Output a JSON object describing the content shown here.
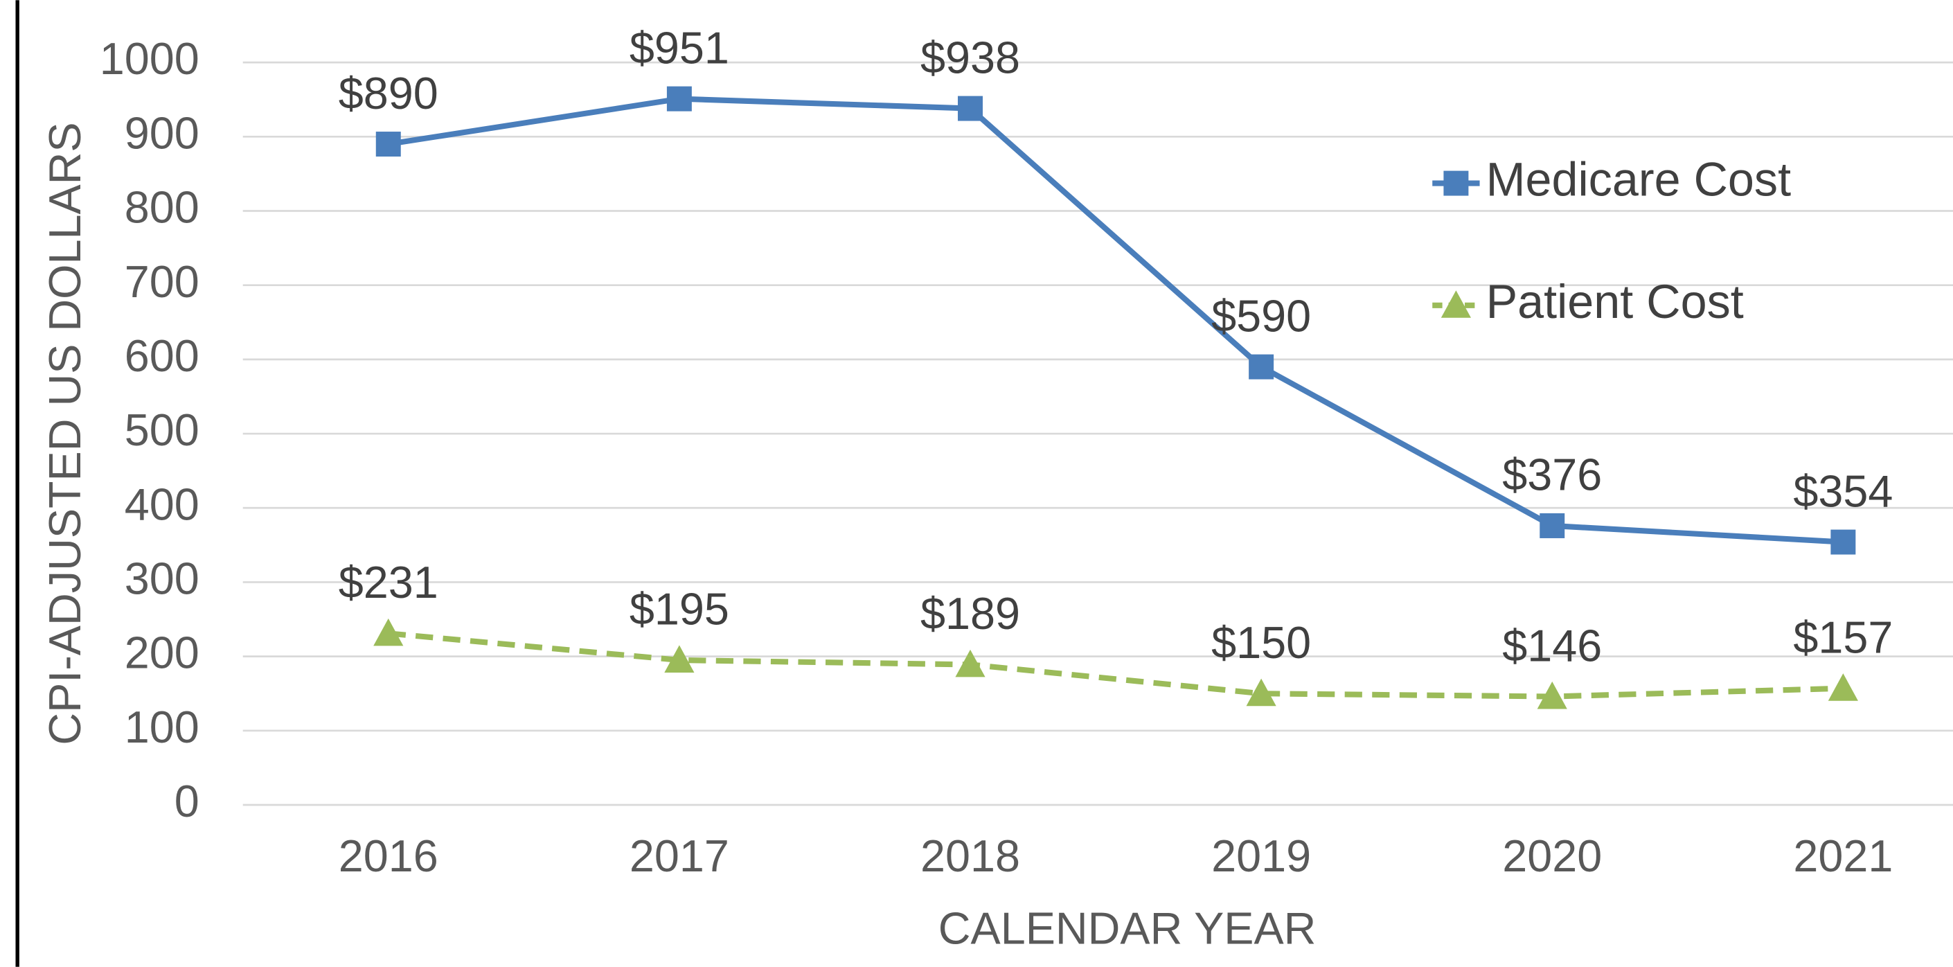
{
  "chart_data": {
    "type": "line",
    "x_label": "CALENDAR YEAR",
    "y_label": "CPI-ADJUSTED US DOLLARS",
    "categories": [
      "2016",
      "2017",
      "2018",
      "2019",
      "2020",
      "2021"
    ],
    "series": [
      {
        "name": "Medicare Cost",
        "color": "#4a7ebb",
        "marker": "square",
        "dashed": false,
        "values": [
          890,
          951,
          938,
          590,
          376,
          354
        ],
        "value_labels": [
          "$890",
          "$951",
          "$938",
          "$590",
          "$376",
          "$354"
        ]
      },
      {
        "name": "Patient Cost",
        "color": "#9bbb59",
        "marker": "triangle",
        "dashed": true,
        "values": [
          231,
          195,
          189,
          150,
          146,
          157
        ],
        "value_labels": [
          "$231",
          "$195",
          "$189",
          "$150",
          "$146",
          "$157"
        ]
      }
    ],
    "ylim": [
      0,
      1000
    ],
    "yticks": [
      0,
      100,
      200,
      300,
      400,
      500,
      600,
      700,
      800,
      900,
      1000
    ],
    "grid": true,
    "legend": "upper right"
  }
}
